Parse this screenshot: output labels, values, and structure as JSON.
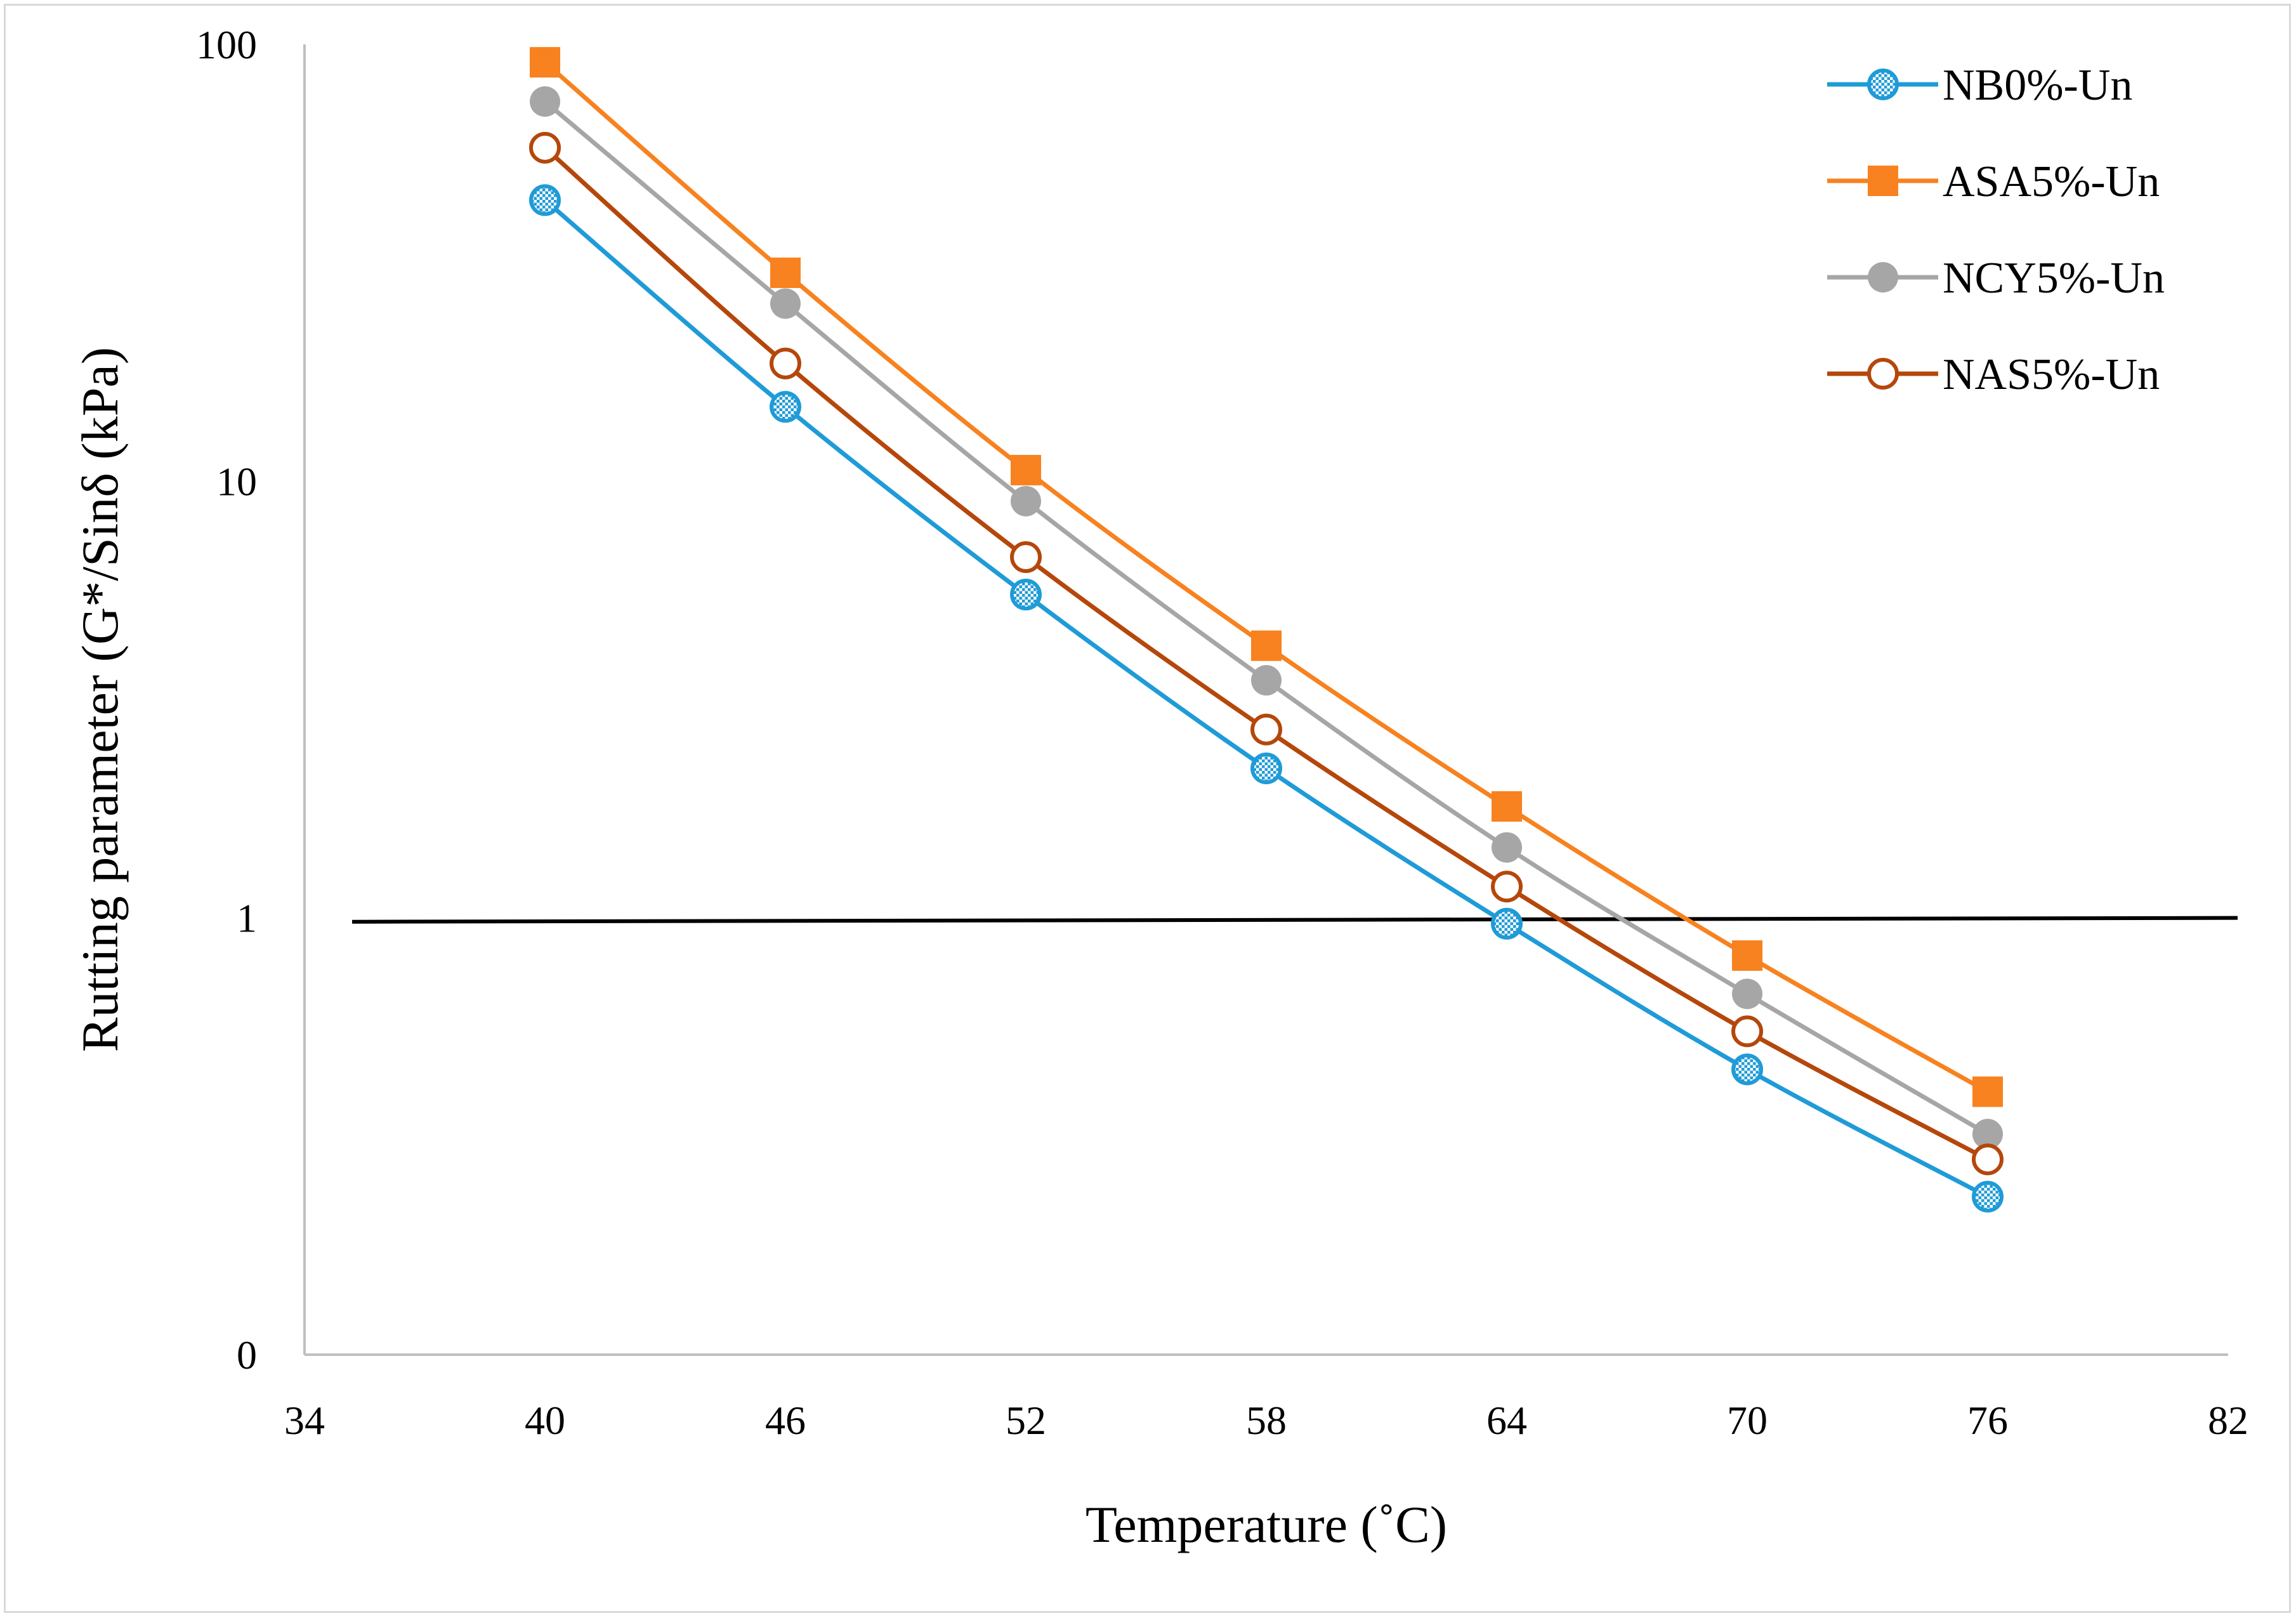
{
  "chart_data": {
    "type": "line",
    "title": "",
    "xlabel": "Temperature (˚C)",
    "ylabel": "Rutting parameter (G*/Sinδ (kPa)",
    "yscale": "log",
    "xlim": [
      34,
      82
    ],
    "ylim": [
      0.1,
      100
    ],
    "xticks": [
      34,
      40,
      46,
      52,
      58,
      64,
      70,
      76,
      82
    ],
    "yticks": [
      {
        "value": 100,
        "label": "100"
      },
      {
        "value": 10,
        "label": "10"
      },
      {
        "value": 1,
        "label": "1"
      },
      {
        "value": 0.1,
        "label": "0"
      }
    ],
    "reference_line": {
      "y_start": 0.98,
      "y_end": 1.0,
      "color": "#000000"
    },
    "legend_position": "top-right",
    "series": [
      {
        "name": "NB0%-Un",
        "color": "#1f9bd7",
        "marker": "patterned-circle",
        "x": [
          40,
          46,
          52,
          58,
          64,
          70,
          76
        ],
        "y": [
          44,
          14.8,
          5.5,
          2.2,
          0.97,
          0.45,
          0.23
        ]
      },
      {
        "name": "ASA5%-Un",
        "color": "#f7821f",
        "marker": "square",
        "x": [
          40,
          46,
          52,
          58,
          64,
          70,
          76
        ],
        "y": [
          91,
          30,
          10.6,
          4.2,
          1.8,
          0.82,
          0.4
        ]
      },
      {
        "name": "NCY5%-Un",
        "color": "#a6a6a6",
        "marker": "filled-circle",
        "x": [
          40,
          46,
          52,
          58,
          64,
          70,
          76
        ],
        "y": [
          74,
          25.5,
          9.0,
          3.5,
          1.45,
          0.67,
          0.32
        ]
      },
      {
        "name": "NAS5%-Un",
        "color": "#b5470b",
        "marker": "open-circle",
        "x": [
          40,
          46,
          52,
          58,
          64,
          70,
          76
        ],
        "y": [
          58,
          18.6,
          6.7,
          2.7,
          1.18,
          0.55,
          0.28
        ]
      }
    ]
  }
}
